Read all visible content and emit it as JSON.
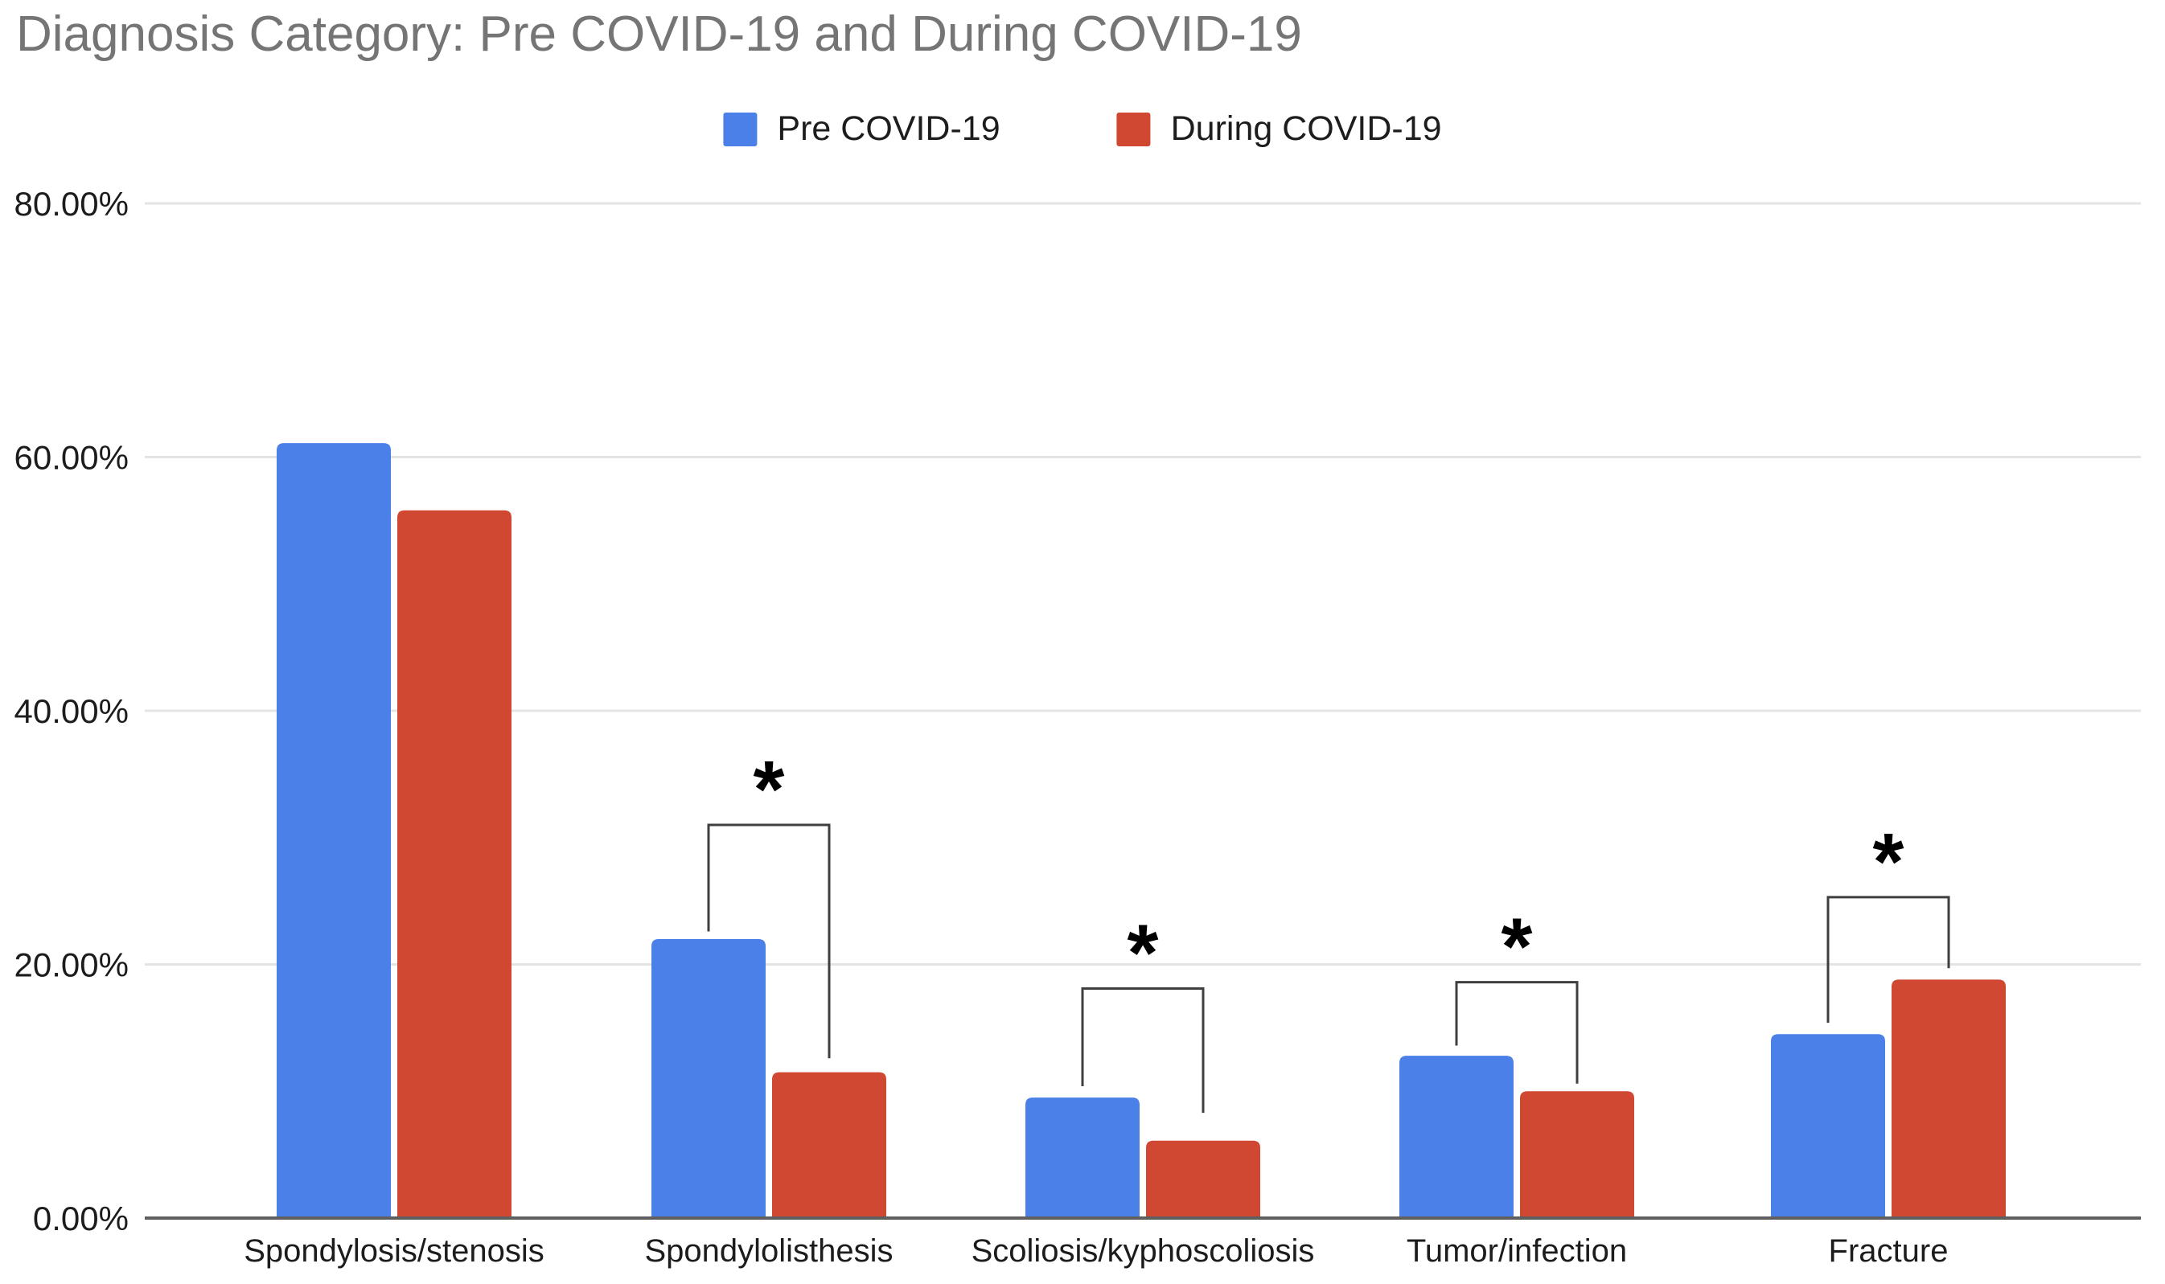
{
  "title": "Diagnosis Category: Pre COVID-19 and During COVID-19",
  "legend": {
    "items": [
      {
        "label": "Pre COVID-19",
        "color": "#4a80e8"
      },
      {
        "label": "During COVID-19",
        "color": "#d04732"
      }
    ]
  },
  "colors": {
    "series_pre": "#4a80e8",
    "series_during": "#d04732",
    "title_text": "#757575",
    "axis_text": "#1c1c1c",
    "gridline": "#e4e4e4",
    "axis_line": "#5f5f5f",
    "bracket": "#3f3f3f",
    "asterisk": "#000000",
    "background": "#ffffff"
  },
  "chart_data": {
    "type": "bar",
    "title": "Diagnosis Category: Pre COVID-19 and During COVID-19",
    "categories": [
      "Spondylosis/stenosis",
      "Spondylolisthesis",
      "Scoliosis/kyphoscoliosis",
      "Tumor/infection",
      "Fracture"
    ],
    "series": [
      {
        "name": "Pre COVID-19",
        "color": "#4a80e8",
        "values": [
          61.1,
          22.0,
          9.5,
          12.8,
          14.5
        ]
      },
      {
        "name": "During COVID-19",
        "color": "#d04732",
        "values": [
          55.8,
          11.5,
          6.1,
          10.0,
          18.8
        ]
      }
    ],
    "xlabel": "",
    "ylabel": "",
    "ylim": [
      0,
      80
    ],
    "y_tick_labels": [
      "0.00%",
      "20.00%",
      "40.00%",
      "60.00%",
      "80.00%"
    ],
    "y_tick_values": [
      0,
      20,
      40,
      60,
      80
    ],
    "grid": true,
    "legend_position": "top",
    "significance_markers": [
      {
        "category": "Spondylolisthesis",
        "category_index": 1,
        "symbol": "*",
        "bracket_top_pct": 31.0,
        "left_arm_bottom_pct": 22.6,
        "right_arm_bottom_pct": 12.6
      },
      {
        "category": "Scoliosis/kyphoscoliosis",
        "category_index": 2,
        "symbol": "*",
        "bracket_top_pct": 18.1,
        "left_arm_bottom_pct": 10.4,
        "right_arm_bottom_pct": 8.3
      },
      {
        "category": "Tumor/infection",
        "category_index": 3,
        "symbol": "*",
        "bracket_top_pct": 18.6,
        "left_arm_bottom_pct": 13.6,
        "right_arm_bottom_pct": 10.6
      },
      {
        "category": "Fracture",
        "category_index": 4,
        "symbol": "*",
        "bracket_top_pct": 25.3,
        "left_arm_bottom_pct": 15.4,
        "right_arm_bottom_pct": 19.7
      }
    ]
  }
}
